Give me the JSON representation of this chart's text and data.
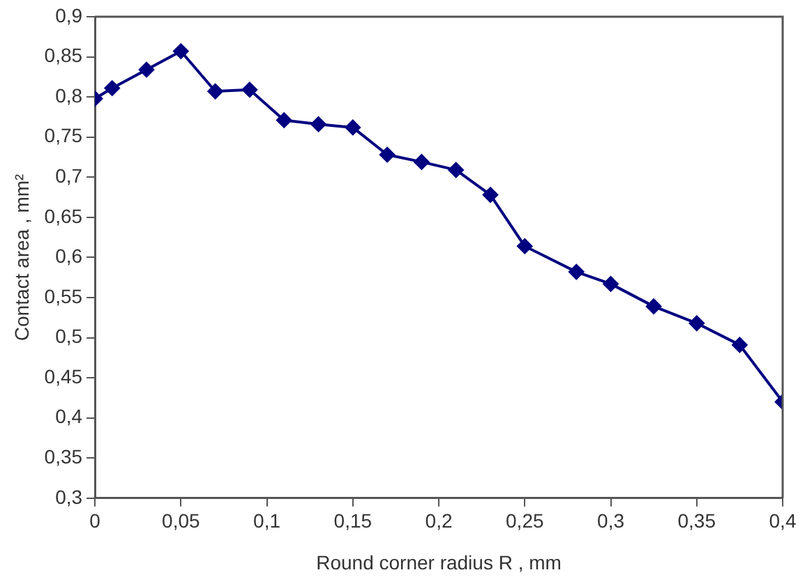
{
  "chart_data": {
    "type": "line",
    "xlabel": "Round corner radius R , mm",
    "ylabel": "Contact area , mm²",
    "x": [
      0,
      0.01,
      0.03,
      0.05,
      0.07,
      0.09,
      0.11,
      0.13,
      0.15,
      0.17,
      0.19,
      0.21,
      0.23,
      0.25,
      0.28,
      0.3,
      0.325,
      0.35,
      0.375,
      0.4
    ],
    "series": [
      {
        "color": "#000080",
        "values": [
          0.798,
          0.811,
          0.834,
          0.857,
          0.807,
          0.809,
          0.771,
          0.766,
          0.762,
          0.728,
          0.719,
          0.709,
          0.678,
          0.614,
          0.582,
          0.567,
          0.539,
          0.518,
          0.491,
          0.42
        ]
      }
    ],
    "xlim": [
      0,
      0.4
    ],
    "xticks": [
      {
        "value": 0,
        "label": "0"
      },
      {
        "value": 0.05,
        "label": "0,05"
      },
      {
        "value": 0.1,
        "label": "0,1"
      },
      {
        "value": 0.15,
        "label": "0,15"
      },
      {
        "value": 0.2,
        "label": "0,2"
      },
      {
        "value": 0.25,
        "label": "0,25"
      },
      {
        "value": 0.3,
        "label": "0,3"
      },
      {
        "value": 0.35,
        "label": "0,35"
      },
      {
        "value": 0.4,
        "label": "0,4"
      }
    ],
    "ylim": [
      0.3,
      0.9
    ],
    "yticks": [
      {
        "value": 0.3,
        "label": "0,3"
      },
      {
        "value": 0.35,
        "label": "0,35"
      },
      {
        "value": 0.4,
        "label": "0,4"
      },
      {
        "value": 0.45,
        "label": "0,45"
      },
      {
        "value": 0.5,
        "label": "0,5"
      },
      {
        "value": 0.55,
        "label": "0,55"
      },
      {
        "value": 0.6,
        "label": "0,6"
      },
      {
        "value": 0.65,
        "label": "0,65"
      },
      {
        "value": 0.7,
        "label": "0,7"
      },
      {
        "value": 0.75,
        "label": "0,75"
      },
      {
        "value": 0.8,
        "label": "0,8"
      },
      {
        "value": 0.85,
        "label": "0,85"
      },
      {
        "value": 0.9,
        "label": "0,9"
      }
    ],
    "grid": false,
    "legend": false,
    "marker": "diamond",
    "line_style": "solid"
  }
}
